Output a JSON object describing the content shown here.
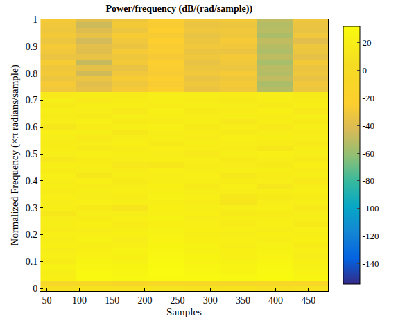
{
  "chart_data": {
    "type": "heatmap",
    "title": "Power/frequency (dB/(rad/sample))",
    "x_label": "Samples",
    "y_label": "Normalized Frequency (×π radians/sample)",
    "color": "parula",
    "x": [
      68,
      123,
      178,
      233,
      288,
      343,
      398,
      453
    ],
    "y": [
      0,
      0.02,
      0.04,
      0.06,
      0.08,
      0.1,
      0.12,
      0.14,
      0.16,
      0.18,
      0.2,
      0.22,
      0.24,
      0.26,
      0.28,
      0.3,
      0.32,
      0.34,
      0.36,
      0.38,
      0.4,
      0.42,
      0.44,
      0.46,
      0.48,
      0.5,
      0.52,
      0.54,
      0.56,
      0.58,
      0.6,
      0.62,
      0.64,
      0.66,
      0.68,
      0.7,
      0.72,
      0.74,
      0.76,
      0.78,
      0.8,
      0.82,
      0.84,
      0.86,
      0.88,
      0.9,
      0.92,
      0.94,
      0.96,
      0.98,
      1
    ],
    "z": [
      [
        8,
        10,
        9,
        11,
        9,
        10,
        8,
        9
      ],
      [
        -6,
        -4,
        -8,
        -3,
        -5,
        -6,
        -4,
        -7
      ],
      [
        22,
        29,
        28,
        30,
        29,
        28,
        30,
        27
      ],
      [
        20,
        29,
        27,
        31,
        28,
        26,
        29,
        25
      ],
      [
        24,
        27,
        26,
        30,
        27,
        25,
        28,
        23
      ],
      [
        18,
        26,
        23,
        29,
        25,
        24,
        27,
        22
      ],
      [
        21,
        24,
        22,
        28,
        26,
        21,
        25,
        19
      ],
      [
        19,
        22,
        24,
        27,
        23,
        22,
        24,
        21
      ],
      [
        22,
        20,
        21,
        26,
        24,
        20,
        23,
        18
      ],
      [
        20,
        23,
        19,
        25,
        22,
        21,
        20,
        22
      ],
      [
        21,
        21,
        22,
        24,
        20,
        19,
        22,
        20
      ],
      [
        18,
        19,
        20,
        23,
        22,
        21,
        19,
        21
      ],
      [
        20,
        22,
        18,
        22,
        21,
        18,
        21,
        17
      ],
      [
        19,
        18,
        21,
        24,
        19,
        20,
        20,
        20
      ],
      [
        14,
        20,
        19,
        21,
        22,
        17,
        18,
        19
      ],
      [
        20,
        17,
        12,
        22,
        20,
        19,
        21,
        16
      ],
      [
        19,
        21,
        20,
        20,
        18,
        12,
        19,
        20
      ],
      [
        21,
        19,
        18,
        23,
        21,
        14,
        17,
        18
      ],
      [
        18,
        20,
        21,
        21,
        19,
        19,
        20,
        21
      ],
      [
        20,
        18,
        19,
        22,
        17,
        21,
        13,
        19
      ],
      [
        19,
        21,
        17,
        20,
        20,
        18,
        19,
        16
      ],
      [
        21,
        14,
        20,
        19,
        21,
        15,
        18,
        20
      ],
      [
        18,
        19,
        18,
        21,
        19,
        20,
        20,
        18
      ],
      [
        20,
        20,
        15,
        14,
        18,
        19,
        17,
        21
      ],
      [
        15,
        18,
        19,
        20,
        20,
        17,
        19,
        17
      ],
      [
        19,
        21,
        20,
        19,
        16,
        20,
        21,
        19
      ],
      [
        20,
        17,
        18,
        21,
        19,
        18,
        14,
        20
      ],
      [
        18,
        19,
        21,
        17,
        20,
        19,
        18,
        16
      ],
      [
        19,
        16,
        19,
        20,
        18,
        21,
        20,
        19
      ],
      [
        21,
        20,
        14,
        19,
        20,
        17,
        19,
        18
      ],
      [
        13,
        18,
        20,
        21,
        17,
        19,
        16,
        20
      ],
      [
        19,
        21,
        17,
        18,
        20,
        15,
        20,
        17
      ],
      [
        18,
        17,
        19,
        20,
        19,
        20,
        18,
        19
      ],
      [
        20,
        19,
        16,
        21,
        17,
        18,
        21,
        16
      ],
      [
        17,
        20,
        20,
        18,
        20,
        19,
        17,
        20
      ],
      [
        19,
        16,
        18,
        20,
        18,
        17,
        20,
        18
      ],
      [
        16,
        18,
        17,
        19,
        19,
        18,
        19,
        17
      ],
      [
        -30,
        -35,
        -28,
        -24,
        -33,
        -30,
        -52,
        -32
      ],
      [
        -28,
        -38,
        -31,
        -26,
        -31,
        -29,
        -55,
        -30
      ],
      [
        -32,
        -33,
        -27,
        -23,
        -34,
        -31,
        -49,
        -35
      ],
      [
        -29,
        -45,
        -30,
        -27,
        -30,
        -28,
        -53,
        -31
      ],
      [
        -31,
        -36,
        -34,
        -25,
        -32,
        -32,
        -51,
        -33
      ],
      [
        -27,
        -48,
        -29,
        -24,
        -35,
        -30,
        -56,
        -29
      ],
      [
        -33,
        -34,
        -31,
        -28,
        -31,
        -29,
        -50,
        -36
      ],
      [
        -30,
        -39,
        -28,
        -25,
        -33,
        -33,
        -54,
        -32
      ],
      [
        -28,
        -37,
        -33,
        -26,
        -30,
        -30,
        -52,
        -31
      ],
      [
        -32,
        -44,
        -30,
        -23,
        -32,
        -28,
        -49,
        -38
      ],
      [
        -29,
        -35,
        -27,
        -27,
        -34,
        -31,
        -55,
        -30
      ],
      [
        -31,
        -40,
        -32,
        -24,
        -31,
        -30,
        -51,
        -34
      ],
      [
        -30,
        -46,
        -29,
        -26,
        -33,
        -32,
        -53,
        -33
      ],
      [
        -28,
        -38,
        -31,
        -25,
        -30,
        -29,
        -50,
        -31
      ]
    ],
    "xlim": [
      40,
      480
    ],
    "ylim": [
      -0.01,
      1
    ],
    "xticks": [
      50,
      100,
      150,
      200,
      250,
      300,
      350,
      400,
      450
    ],
    "yticks": [
      0,
      0.1,
      0.2,
      0.3,
      0.4,
      0.5,
      0.6,
      0.7,
      0.8,
      0.9,
      1
    ],
    "color_range": [
      -155,
      32
    ],
    "color_ticks": [
      -140,
      -120,
      -100,
      -80,
      -60,
      -40,
      -20,
      0,
      20
    ]
  }
}
